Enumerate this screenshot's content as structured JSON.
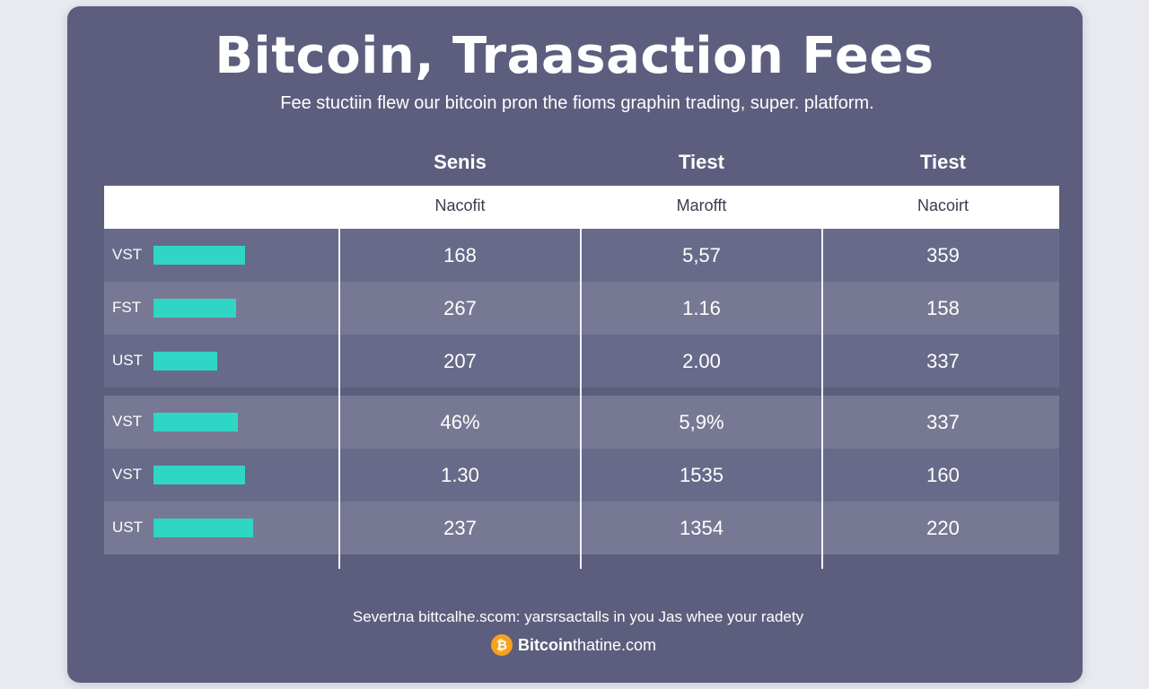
{
  "header": {
    "title": "Bitcoin, Traasaction Fees",
    "subtitle": "Fee stuctiin flew our bitcoin pron the fioms graphin trading, super. platform."
  },
  "chart_data": {
    "type": "table",
    "columns": [
      {
        "name": "Senis",
        "subheader": "Nacofit"
      },
      {
        "name": "Tiest",
        "subheader": "Marofft"
      },
      {
        "name": "Tiest",
        "subheader": "Nacoirt"
      }
    ],
    "rows": [
      {
        "label": "VST",
        "bar_value": 0.62,
        "values": [
          "168",
          "5,57",
          "359"
        ]
      },
      {
        "label": "FST",
        "bar_value": 0.56,
        "values": [
          "267",
          "1.16",
          "158"
        ]
      },
      {
        "label": "UST",
        "bar_value": 0.43,
        "values": [
          "207",
          "2.00",
          "337"
        ]
      },
      {
        "label": "VST",
        "bar_value": 0.57,
        "values": [
          "46%",
          "5,9%",
          "337"
        ]
      },
      {
        "label": "VST",
        "bar_value": 0.62,
        "values": [
          "1.30",
          "1535",
          "160"
        ]
      },
      {
        "label": "UST",
        "bar_value": 0.67,
        "values": [
          "237",
          "1354",
          "220"
        ]
      }
    ],
    "bar_color": "#2fd6c5"
  },
  "footer": {
    "text": "Severtла bittcalhe.scom: yarsrsactalls in you Jas whee your radety",
    "brand_icon": "bitcoin-icon",
    "brand_bold": "Bitcoin",
    "brand_rest": "thatine.com"
  },
  "colors": {
    "card": "#5d5e7e",
    "page_background": "#e8eaf0",
    "accent": "#2fd6c5",
    "bitcoin_orange": "#f7a21b"
  }
}
